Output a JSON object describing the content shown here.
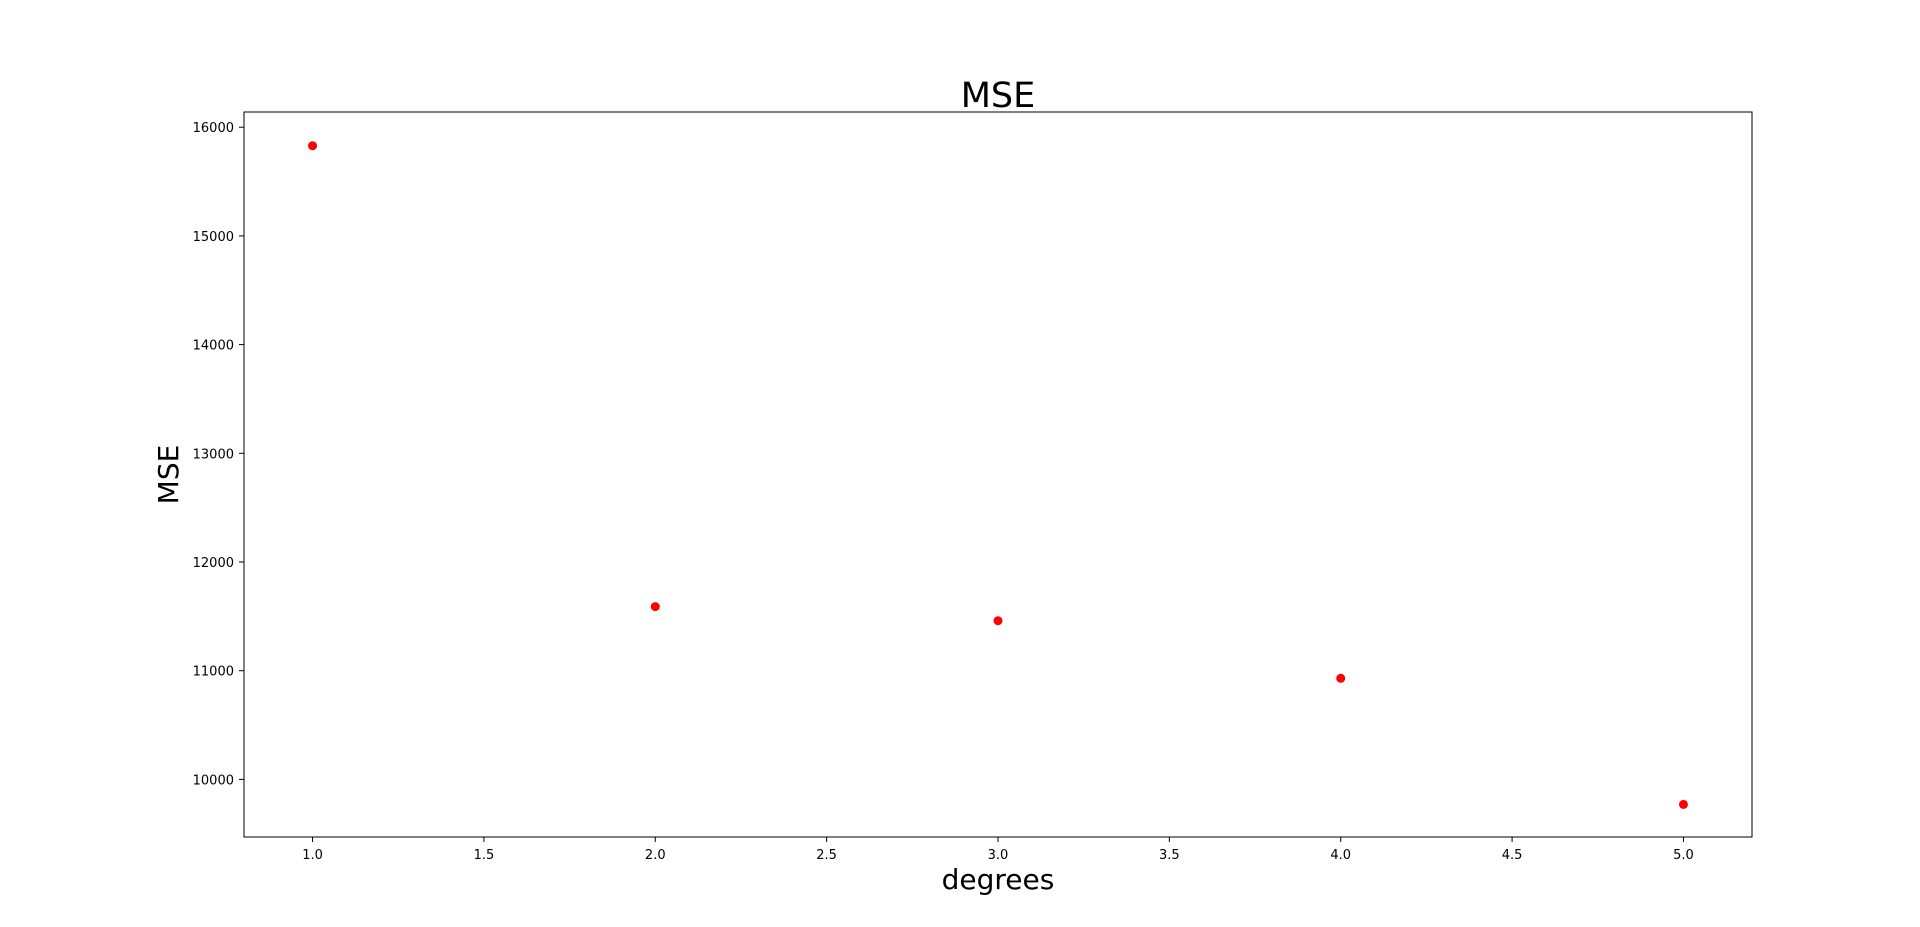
{
  "chart_data": {
    "type": "scatter",
    "title": "MSE",
    "xlabel": "degrees",
    "ylabel": "MSE",
    "xlim": [
      0.8,
      5.2
    ],
    "ylim": [
      9470,
      16140
    ],
    "x_ticks": [
      1.0,
      1.5,
      2.0,
      2.5,
      3.0,
      3.5,
      4.0,
      4.5,
      5.0
    ],
    "x_tick_labels": [
      "1.0",
      "1.5",
      "2.0",
      "2.5",
      "3.0",
      "3.5",
      "4.0",
      "4.5",
      "5.0"
    ],
    "y_ticks": [
      10000,
      11000,
      12000,
      13000,
      14000,
      15000,
      16000
    ],
    "y_tick_labels": [
      "10000",
      "11000",
      "12000",
      "13000",
      "14000",
      "15000",
      "16000"
    ],
    "grid": false,
    "legend": "none",
    "series": [
      {
        "color": "#ff0000",
        "x": [
          1,
          2,
          3,
          4,
          5
        ],
        "y": [
          15830,
          11590,
          11460,
          10930,
          9770
        ]
      }
    ]
  }
}
